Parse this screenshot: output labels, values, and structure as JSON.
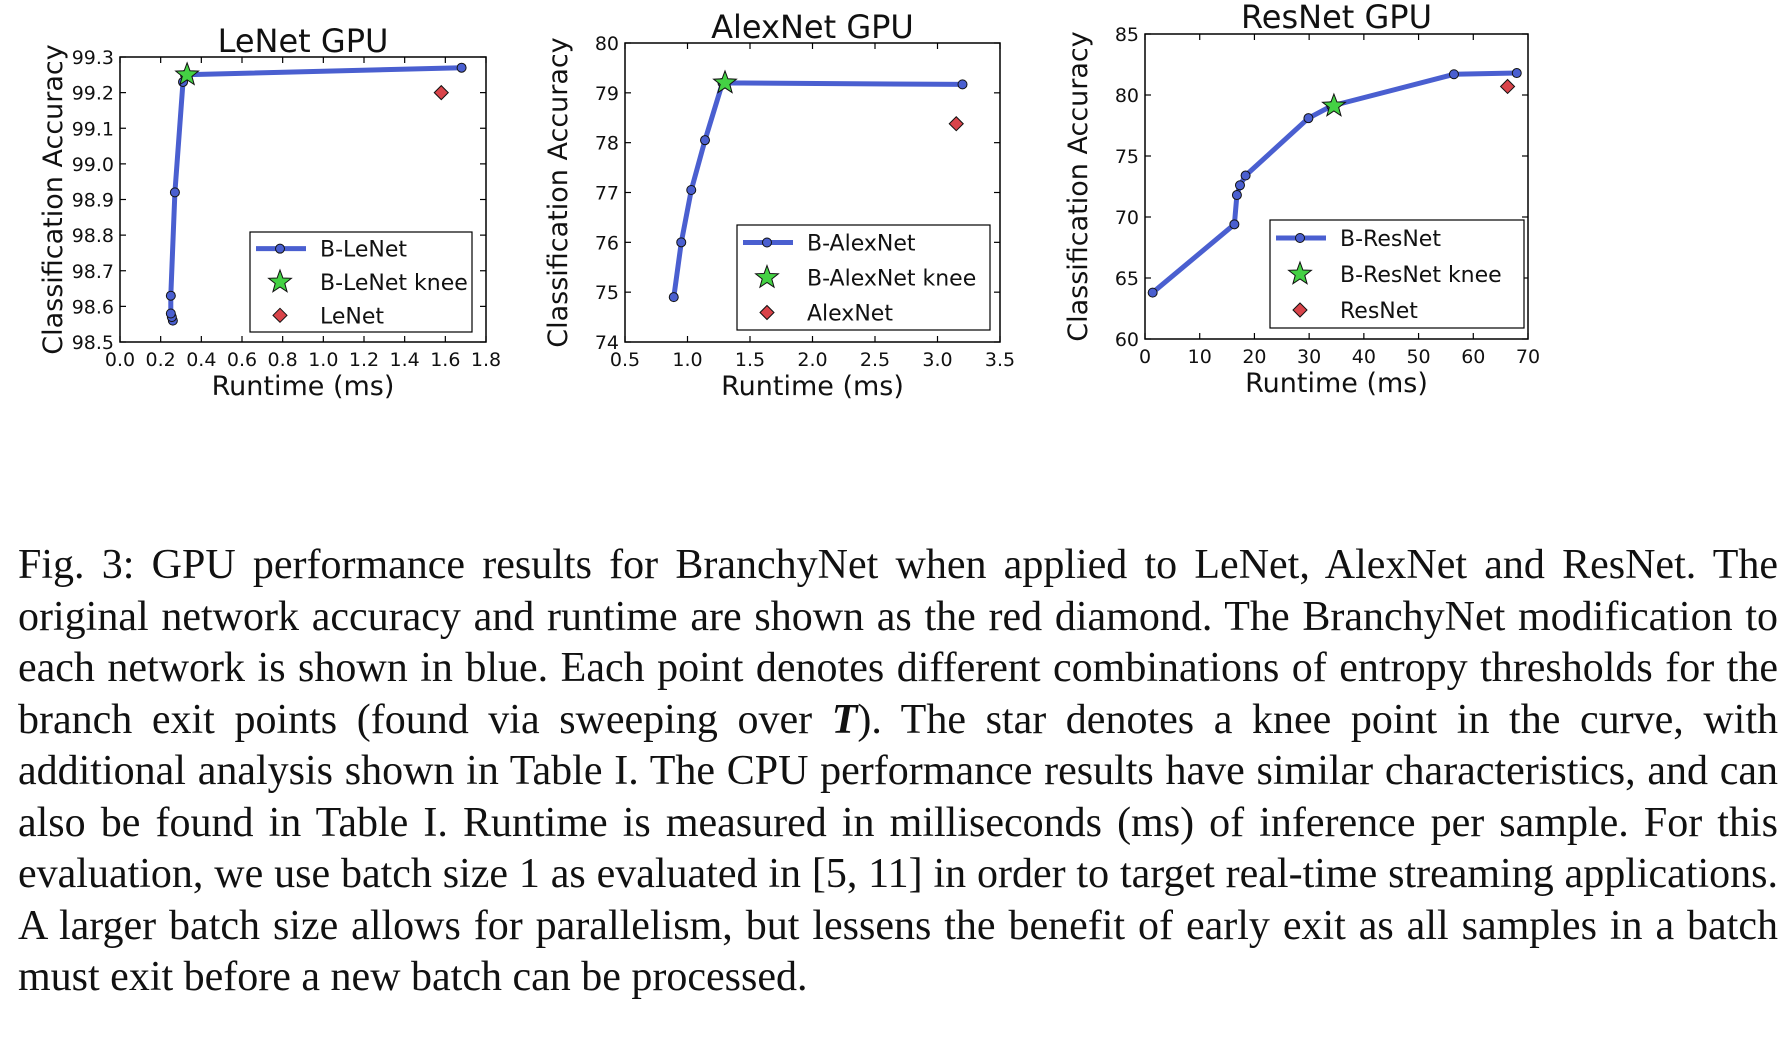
{
  "charts": [
    {
      "type": "line",
      "title": "LeNet GPU",
      "xlabel": "Runtime (ms)",
      "ylabel": "Classification Accuracy",
      "xlim": [
        0.0,
        1.8
      ],
      "ylim": [
        98.5,
        99.3
      ],
      "xticks": [
        "0.0",
        "0.2",
        "0.4",
        "0.6",
        "0.8",
        "1.0",
        "1.2",
        "1.4",
        "1.6",
        "1.8"
      ],
      "yticks": [
        "98.5",
        "98.6",
        "98.7",
        "98.8",
        "98.9",
        "99.0",
        "99.1",
        "99.2",
        "99.3"
      ],
      "series": [
        {
          "name": "B-LeNet",
          "kind": "line",
          "color": "#4a5fd0",
          "x": [
            0.26,
            0.255,
            0.25,
            0.25,
            0.27,
            0.31,
            0.32,
            1.68
          ],
          "y": [
            98.56,
            98.57,
            98.58,
            98.63,
            98.92,
            99.23,
            99.25,
            99.27
          ]
        },
        {
          "name": "B-LeNet knee",
          "kind": "star",
          "color": "#44d144",
          "x": [
            0.33
          ],
          "y": [
            99.25
          ]
        },
        {
          "name": "LeNet",
          "kind": "diamond",
          "color": "#d9444a",
          "x": [
            1.58
          ],
          "y": [
            99.2
          ]
        }
      ],
      "legend": {
        "position": "lower-right",
        "labels": [
          "B-LeNet",
          "B-LeNet knee",
          "LeNet"
        ]
      }
    },
    {
      "type": "line",
      "title": "AlexNet GPU",
      "xlabel": "Runtime (ms)",
      "ylabel": "Classification Accuracy",
      "xlim": [
        0.5,
        3.5
      ],
      "ylim": [
        74,
        80
      ],
      "xticks": [
        "0.5",
        "1.0",
        "1.5",
        "2.0",
        "2.5",
        "3.0",
        "3.5"
      ],
      "yticks": [
        "74",
        "75",
        "76",
        "77",
        "78",
        "79",
        "80"
      ],
      "series": [
        {
          "name": "B-AlexNet",
          "kind": "line",
          "color": "#4a5fd0",
          "x": [
            0.89,
            0.95,
            1.03,
            1.14,
            1.28,
            3.2
          ],
          "y": [
            74.9,
            76.0,
            77.05,
            78.05,
            79.2,
            79.17
          ]
        },
        {
          "name": "B-AlexNet knee",
          "kind": "star",
          "color": "#44d144",
          "x": [
            1.3
          ],
          "y": [
            79.2
          ]
        },
        {
          "name": "AlexNet",
          "kind": "diamond",
          "color": "#d9444a",
          "x": [
            3.15
          ],
          "y": [
            78.38
          ]
        }
      ],
      "legend": {
        "position": "lower-right",
        "labels": [
          "B-AlexNet",
          "B-AlexNet knee",
          "AlexNet"
        ]
      }
    },
    {
      "type": "line",
      "title": "ResNet GPU",
      "xlabel": "Runtime (ms)",
      "ylabel": "Classification Accuracy",
      "xlim": [
        0,
        75
      ],
      "ylim": [
        60,
        85
      ],
      "xticks": [
        "0",
        "10",
        "20",
        "30",
        "40",
        "50",
        "60",
        "70"
      ],
      "yticks": [
        "60",
        "65",
        "70",
        "75",
        "80",
        "85"
      ],
      "series": [
        {
          "name": "B-ResNet",
          "kind": "line",
          "color": "#4a5fd0",
          "x": [
            1.5,
            17.5,
            18.0,
            18.6,
            19.7,
            32.0,
            36.5,
            60.5,
            72.8
          ],
          "y": [
            63.8,
            69.4,
            71.8,
            72.6,
            73.4,
            78.1,
            79.1,
            81.7,
            81.8
          ]
        },
        {
          "name": "B-ResNet knee",
          "kind": "star",
          "color": "#44d144",
          "x": [
            37
          ],
          "y": [
            79.1
          ]
        },
        {
          "name": "ResNet",
          "kind": "diamond",
          "color": "#d9444a",
          "x": [
            71
          ],
          "y": [
            80.7
          ]
        }
      ],
      "legend": {
        "position": "lower-right",
        "labels": [
          "B-ResNet",
          "B-ResNet knee",
          "ResNet"
        ]
      }
    }
  ],
  "caption": {
    "label": "Fig. 3:",
    "text_before_math": "GPU performance results for BranchyNet when applied to LeNet, AlexNet and ResNet. The original network accuracy and runtime are shown as the red diamond. The BranchyNet modification to each network is shown in blue. Each point denotes different combinations of entropy thresholds for the branch exit points (found via sweeping over ",
    "math": "T",
    "text_after_math": "). The star denotes a knee point in the curve, with additional analysis shown in Table I. The CPU performance results have similar characteristics, and can also be found in Table I. Runtime is measured in milliseconds (ms) of inference per sample. For this evaluation, we use batch size 1 as evaluated in [5, 11] in order to target real-time streaming applications. A larger batch size allows for parallelism, but lessens the benefit of early exit as all samples in a batch must exit before a new batch can be processed."
  }
}
